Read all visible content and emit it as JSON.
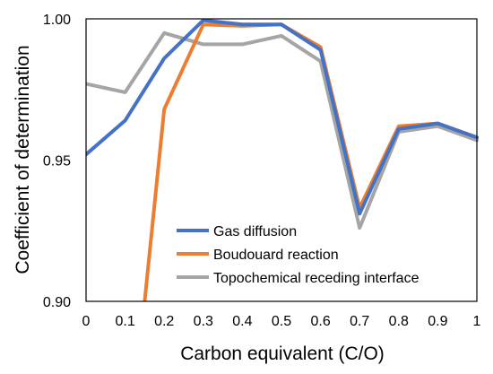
{
  "chart_data": {
    "type": "line",
    "xlabel": "Carbon equivalent (C/O)",
    "ylabel": "Coefficient of determination",
    "xlim": [
      0,
      1
    ],
    "ylim": [
      0.9,
      1.0
    ],
    "x_ticks": [
      "0",
      "0.1",
      "0.2",
      "0.3",
      "0.4",
      "0.5",
      "0.6",
      "0.7",
      "0.8",
      "0.9",
      "1"
    ],
    "y_ticks": [
      "0.90",
      "0.95",
      "1.00"
    ],
    "grid": false,
    "legend_position": "bottom-right",
    "x": [
      0,
      0.1,
      0.2,
      0.3,
      0.4,
      0.5,
      0.6,
      0.7,
      0.8,
      0.9,
      1.0
    ],
    "series": [
      {
        "name": "Gas diffusion",
        "color": "#4472c4",
        "values": [
          0.952,
          0.964,
          0.986,
          0.9995,
          0.998,
          0.998,
          0.989,
          0.931,
          0.961,
          0.963,
          0.958
        ]
      },
      {
        "name": "Boudouard reaction",
        "color": "#ed7d31",
        "x": [
          0.15,
          0.2,
          0.3,
          0.4,
          0.5,
          0.6,
          0.7,
          0.8,
          0.9,
          1.0
        ],
        "values": [
          0.9,
          0.968,
          0.998,
          0.9975,
          0.998,
          0.99,
          0.933,
          0.962,
          0.963,
          0.958
        ]
      },
      {
        "name": "Topochemical receding interface",
        "color": "#a5a5a5",
        "values": [
          0.977,
          0.974,
          0.995,
          0.991,
          0.991,
          0.994,
          0.985,
          0.926,
          0.96,
          0.962,
          0.957
        ]
      }
    ]
  }
}
